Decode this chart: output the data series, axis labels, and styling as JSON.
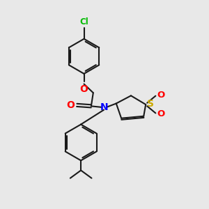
{
  "background_color": "#e8e8e8",
  "bond_color": "#1a1a1a",
  "cl_color": "#00bb00",
  "o_color": "#ff0000",
  "n_color": "#0000ff",
  "s_color": "#ccaa00",
  "figsize": [
    3.0,
    3.0
  ],
  "dpi": 100,
  "xlim": [
    0,
    10
  ],
  "ylim": [
    0,
    10
  ]
}
